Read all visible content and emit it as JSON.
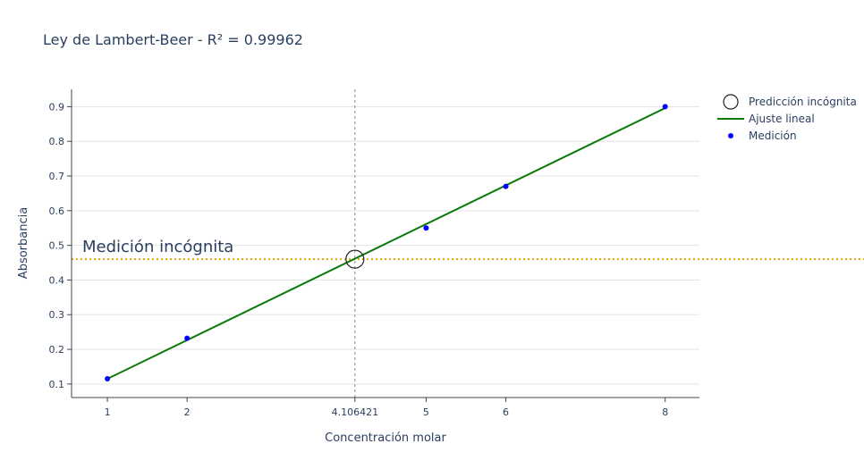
{
  "chart_data": {
    "type": "scatter",
    "title": "Ley de Lambert-Beer - R² = 0.99962",
    "xlabel": "Concentración molar",
    "ylabel": "Absorbancia",
    "xlim": [
      0.55,
      8.43
    ],
    "ylim": [
      0.061,
      0.95
    ],
    "x_ticks": [
      1,
      2,
      4.106421,
      5,
      6,
      8
    ],
    "x_tick_labels": [
      "1",
      "2",
      "4.106421",
      "5",
      "6",
      "8"
    ],
    "y_ticks": [
      0.1,
      0.2,
      0.3,
      0.4,
      0.5,
      0.6,
      0.7,
      0.8,
      0.9
    ],
    "y_tick_labels": [
      "0.1",
      "0.2",
      "0.3",
      "0.4",
      "0.5",
      "0.6",
      "0.7",
      "0.8",
      "0.9"
    ],
    "grid": true,
    "legend_position": "top-right",
    "series": [
      {
        "name": "Predicción incógnita",
        "kind": "marker-open-circle",
        "color": "#222222",
        "x": [
          4.106421
        ],
        "y": [
          0.46
        ]
      },
      {
        "name": "Ajuste lineal",
        "kind": "line",
        "color": "#0a7a0a",
        "x": [
          1,
          8
        ],
        "y": [
          0.115,
          0.896
        ]
      },
      {
        "name": "Medición",
        "kind": "marker",
        "color": "#0000ff",
        "x": [
          1,
          2,
          5,
          6,
          8
        ],
        "y": [
          0.115,
          0.232,
          0.55,
          0.67,
          0.9
        ]
      }
    ],
    "reference_lines": {
      "horizontal": {
        "y": 0.46,
        "color": "#e0a500",
        "style": "dotted"
      },
      "vertical": {
        "x": 4.106421,
        "color": "#888888",
        "style": "dotted"
      }
    },
    "annotations": [
      {
        "text": "Medición incógnita",
        "x": 0.85,
        "y": 0.5
      }
    ]
  }
}
